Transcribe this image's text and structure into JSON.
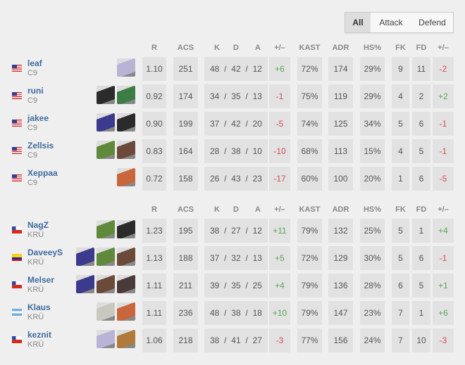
{
  "tabs": [
    "All",
    "Attack",
    "Defend"
  ],
  "selected_tab": "All",
  "headers": {
    "r": "R",
    "acs": "ACS",
    "k": "K",
    "d": "D",
    "a": "A",
    "pm": "+/–",
    "kast": "KAST",
    "adr": "ADR",
    "hs": "HS%",
    "fk": "FK",
    "fd": "FD",
    "fpm": "+/–"
  },
  "colors": {
    "name": "#3f6b9e",
    "positive": "#5ba65b",
    "negative": "#d24d57",
    "cell": "#e2e2e2"
  },
  "teams": [
    {
      "players": [
        {
          "name": "leaf",
          "team": "C9",
          "flag": "us",
          "agents": [
            "#b9b4d6"
          ],
          "r": "1.10",
          "acs": "251",
          "k": "48",
          "d": "42",
          "a": "12",
          "pm": "+6",
          "kast": "72%",
          "adr": "174",
          "hs": "29%",
          "fk": "9",
          "fd": "11",
          "fpm": "-2"
        },
        {
          "name": "runi",
          "team": "C9",
          "flag": "us",
          "agents": [
            "#2b2b2b",
            "#3c7d45"
          ],
          "r": "0.92",
          "acs": "174",
          "k": "34",
          "d": "35",
          "a": "13",
          "pm": "-1",
          "kast": "75%",
          "adr": "119",
          "hs": "29%",
          "fk": "4",
          "fd": "2",
          "fpm": "+2"
        },
        {
          "name": "jakee",
          "team": "C9",
          "flag": "us",
          "agents": [
            "#3b3a8c",
            "#2b2b2b"
          ],
          "r": "0.90",
          "acs": "199",
          "k": "37",
          "d": "42",
          "a": "20",
          "pm": "-5",
          "kast": "74%",
          "adr": "125",
          "hs": "34%",
          "fk": "5",
          "fd": "6",
          "fpm": "-1"
        },
        {
          "name": "Zellsis",
          "team": "C9",
          "flag": "us",
          "agents": [
            "#5f8a3c",
            "#6b4a3a"
          ],
          "r": "0.83",
          "acs": "164",
          "k": "28",
          "d": "38",
          "a": "10",
          "pm": "-10",
          "kast": "68%",
          "adr": "113",
          "hs": "15%",
          "fk": "4",
          "fd": "5",
          "fpm": "-1"
        },
        {
          "name": "Xeppaa",
          "team": "C9",
          "flag": "us",
          "agents": [
            "#c9663c"
          ],
          "r": "0.72",
          "acs": "158",
          "k": "26",
          "d": "43",
          "a": "23",
          "pm": "-17",
          "kast": "60%",
          "adr": "100",
          "hs": "20%",
          "fk": "1",
          "fd": "6",
          "fpm": "-5"
        }
      ]
    },
    {
      "players": [
        {
          "name": "NagZ",
          "team": "KRÜ",
          "flag": "cl",
          "agents": [
            "#5f8a3c",
            "#2b2b2b"
          ],
          "r": "1.23",
          "acs": "195",
          "k": "38",
          "d": "27",
          "a": "12",
          "pm": "+11",
          "kast": "79%",
          "adr": "132",
          "hs": "25%",
          "fk": "5",
          "fd": "1",
          "fpm": "+4"
        },
        {
          "name": "DaveeyS",
          "team": "KRÜ",
          "flag": "co",
          "agents": [
            "#3b3a8c",
            "#5f8a3c",
            "#6b4a3a"
          ],
          "r": "1.13",
          "acs": "188",
          "k": "37",
          "d": "32",
          "a": "13",
          "pm": "+5",
          "kast": "72%",
          "adr": "129",
          "hs": "30%",
          "fk": "5",
          "fd": "6",
          "fpm": "-1"
        },
        {
          "name": "Melser",
          "team": "KRÜ",
          "flag": "cl",
          "agents": [
            "#3b3a8c",
            "#6b4a3a",
            "#4a3a3a"
          ],
          "r": "1.11",
          "acs": "211",
          "k": "39",
          "d": "35",
          "a": "25",
          "pm": "+4",
          "kast": "79%",
          "adr": "136",
          "hs": "28%",
          "fk": "6",
          "fd": "5",
          "fpm": "+1"
        },
        {
          "name": "Klaus",
          "team": "KRÜ",
          "flag": "ar",
          "agents": [
            "#c8c8c0",
            "#c9663c"
          ],
          "r": "1.11",
          "acs": "236",
          "k": "48",
          "d": "38",
          "a": "18",
          "pm": "+10",
          "kast": "79%",
          "adr": "147",
          "hs": "23%",
          "fk": "7",
          "fd": "1",
          "fpm": "+6"
        },
        {
          "name": "keznit",
          "team": "KRÜ",
          "flag": "cl",
          "agents": [
            "#b9b4d6",
            "#b07a3a"
          ],
          "r": "1.06",
          "acs": "218",
          "k": "38",
          "d": "41",
          "a": "27",
          "pm": "-3",
          "kast": "77%",
          "adr": "156",
          "hs": "24%",
          "fk": "7",
          "fd": "10",
          "fpm": "-3"
        }
      ]
    }
  ]
}
